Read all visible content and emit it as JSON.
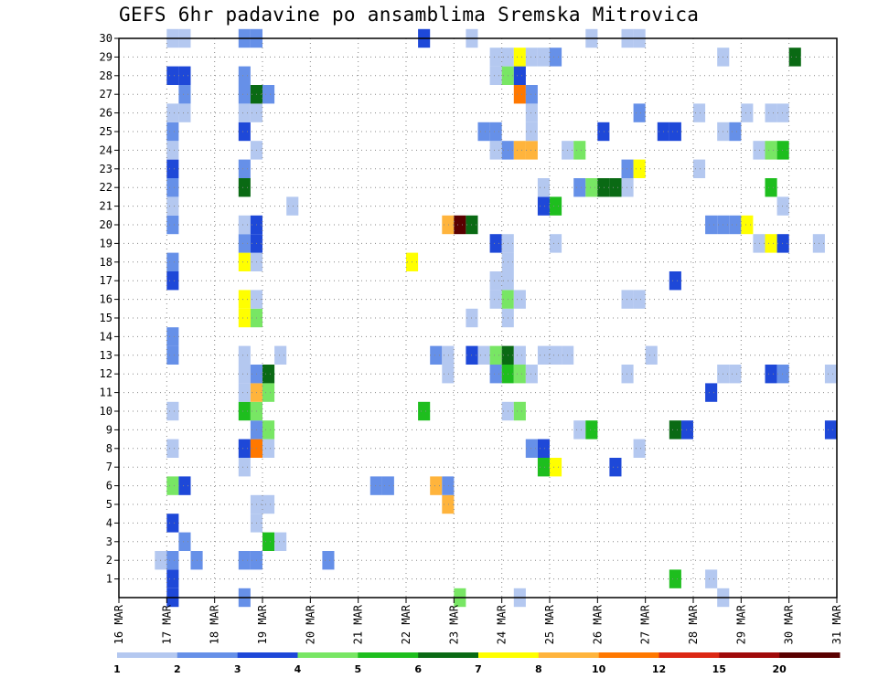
{
  "chart_data": {
    "type": "heatmap",
    "title": "GEFS 6hr padavine po ansamblima Sremska Mitrovica",
    "xlabel": "",
    "ylabel": "",
    "x_ticks": [
      "16 MAR",
      "17 MAR",
      "18 MAR",
      "19 MAR",
      "20 MAR",
      "21 MAR",
      "22 MAR",
      "23 MAR",
      "24 MAR",
      "25 MAR",
      "26 MAR",
      "27 MAR",
      "28 MAR",
      "29 MAR",
      "30 MAR",
      "31 MAR"
    ],
    "y_ticks": [
      1,
      2,
      3,
      4,
      5,
      6,
      7,
      8,
      9,
      10,
      11,
      12,
      13,
      14,
      15,
      16,
      17,
      18,
      19,
      20,
      21,
      22,
      23,
      24,
      25,
      26,
      27,
      28,
      29,
      30
    ],
    "x_range_days": [
      0,
      15
    ],
    "y_range": [
      0,
      30
    ],
    "steps_per_day": 4,
    "grid": true,
    "legend_position": "bottom",
    "colorbar": {
      "labels": [
        "1",
        "2",
        "3",
        "4",
        "5",
        "6",
        "7",
        "8",
        "10",
        "12",
        "15",
        "20"
      ],
      "colors": [
        "#b4c8f0",
        "#6690e8",
        "#1e48d8",
        "#78e664",
        "#1ebe1e",
        "#0a6a14",
        "#ffff00",
        "#ffb43c",
        "#ff7800",
        "#dc2814",
        "#a00a0a",
        "#5a0000"
      ]
    },
    "cells": [
      [
        1,
        2,
        0
      ],
      [
        4,
        4,
        2
      ],
      [
        5,
        4,
        1
      ],
      [
        10,
        2,
        2
      ],
      [
        11,
        2,
        2
      ],
      [
        12,
        2,
        1
      ],
      [
        31,
        4,
        1
      ],
      [
        32,
        4,
        1
      ],
      [
        33,
        4,
        1
      ],
      [
        41,
        4,
        5
      ],
      [
        42,
        5,
        3
      ],
      [
        49,
        1,
        1
      ],
      [
        51,
        1,
        1
      ],
      [
        61,
        1,
        1
      ],
      [
        62,
        1,
        1
      ],
      [
        7,
        5,
        1
      ],
      [
        8,
        5,
        1
      ],
      [
        9,
        5,
        1
      ],
      [
        16,
        2,
        1
      ],
      [
        17,
        2,
        1
      ],
      [
        18,
        2,
        1
      ],
      [
        26,
        3,
        3
      ],
      [
        32,
        3,
        5
      ],
      [
        59,
        3,
        2
      ],
      [
        62,
        3,
        1
      ],
      [
        8,
        6,
        1
      ],
      [
        9,
        6,
        2
      ],
      [
        10,
        6,
        3
      ],
      [
        16,
        5,
        1
      ],
      [
        17,
        5,
        2
      ],
      [
        18,
        5,
        3
      ],
      [
        19,
        5,
        3
      ],
      [
        33,
        5,
        1
      ],
      [
        34,
        5,
        2
      ],
      [
        35,
        5,
        1
      ],
      [
        38,
        5,
        5
      ],
      [
        48,
        5,
        3
      ],
      [
        49,
        5,
        6
      ],
      [
        50,
        5,
        4
      ],
      [
        51,
        5,
        3
      ],
      [
        52,
        5,
        2
      ],
      [
        57,
        4,
        2
      ],
      [
        58,
        4,
        1
      ],
      [
        0,
        6,
        0
      ],
      [
        2,
        6,
        1
      ],
      [
        8,
        6,
        2
      ],
      [
        26,
        6,
        1
      ],
      [
        27,
        6,
        3
      ],
      [
        30,
        6,
        2
      ],
      [
        31,
        6,
        2
      ],
      [
        32,
        6,
        5
      ],
      [
        33,
        6,
        2
      ],
      [
        34,
        6,
        1
      ],
      [
        35,
        6,
        1
      ],
      [
        36,
        6,
        1
      ],
      [
        44,
        6,
        3
      ],
      [
        45,
        6,
        3
      ],
      [
        46,
        6,
        2
      ],
      [
        47,
        6,
        1
      ],
      [
        48,
        6,
        1
      ],
      [
        49,
        6,
        2
      ],
      [
        50,
        6,
        1
      ],
      [
        52,
        6,
        2
      ],
      [
        53,
        6,
        1
      ],
      [
        54,
        6,
        3
      ],
      [
        55,
        6,
        2
      ],
      [
        56,
        6,
        1
      ],
      [
        57,
        6,
        1
      ],
      [
        58,
        6,
        1
      ],
      [
        59,
        6,
        2
      ],
      [
        61,
        6,
        2
      ],
      [
        63,
        6,
        1
      ],
      [
        64,
        6,
        1
      ],
      [
        0,
        7,
        1
      ],
      [
        16,
        7,
        1
      ],
      [
        16,
        7,
        2
      ],
      [
        17,
        7,
        1
      ],
      [
        20,
        7,
        1
      ],
      [
        27,
        7,
        1
      ],
      [
        33,
        7,
        1
      ],
      [
        34,
        7,
        1
      ],
      [
        36,
        7,
        2
      ],
      [
        37,
        7,
        1
      ],
      [
        43,
        7,
        1
      ],
      [
        44,
        7,
        1
      ],
      [
        45,
        7,
        1
      ],
      [
        46,
        7,
        1
      ],
      [
        47,
        7,
        1
      ],
      [
        0,
        8,
        2
      ],
      [
        2,
        8,
        2
      ],
      [
        12,
        8,
        1
      ],
      [
        22,
        8,
        1
      ],
      [
        23,
        8,
        1
      ],
      [
        24,
        8,
        1
      ],
      [
        25,
        8,
        1
      ],
      [
        26,
        8,
        1
      ],
      [
        27,
        8,
        1
      ],
      [
        28,
        8,
        1
      ],
      [
        29,
        8,
        1
      ],
      [
        30,
        8,
        1
      ],
      [
        31,
        8,
        1
      ],
      [
        32,
        8,
        2
      ],
      [
        33,
        8,
        1
      ],
      [
        34,
        8,
        1
      ],
      [
        35,
        8,
        2
      ],
      [
        36,
        8,
        3
      ],
      [
        37,
        8,
        1
      ],
      [
        38,
        8,
        2
      ],
      [
        39,
        8,
        1
      ],
      [
        40,
        8,
        2
      ],
      [
        41,
        8,
        1
      ],
      [
        42,
        8,
        3
      ],
      [
        43,
        8,
        2
      ],
      [
        44,
        8,
        1
      ],
      [
        46,
        8,
        2
      ],
      [
        48,
        8,
        1
      ],
      [
        50,
        8,
        1
      ],
      [
        51,
        8,
        1
      ],
      [
        52,
        8,
        2
      ],
      [
        53,
        8,
        3
      ],
      [
        54,
        8,
        2
      ],
      [
        55,
        8,
        1
      ],
      [
        56,
        8,
        1
      ],
      [
        58,
        8,
        1
      ],
      [
        59,
        8,
        1
      ],
      [
        60,
        8,
        1
      ],
      [
        61,
        8,
        2
      ],
      [
        62,
        8,
        3
      ],
      [
        63,
        8,
        1
      ]
    ],
    "cells_explicit": [
      [
        0,
        0,
        0
      ],
      [
        0,
        0,
        0
      ]
    ]
  }
}
